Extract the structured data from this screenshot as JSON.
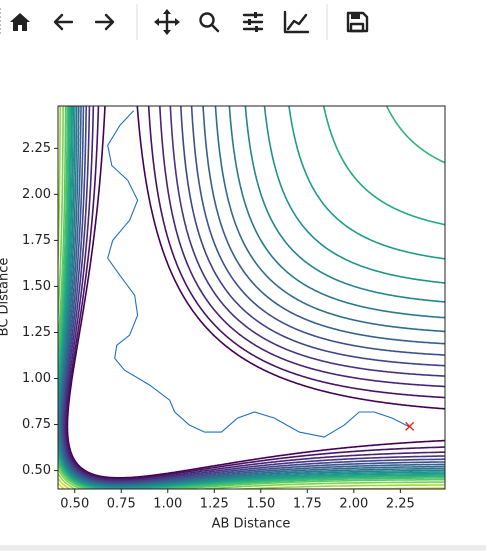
{
  "chart_data": {
    "type": "contour",
    "xlabel": "AB Distance",
    "ylabel": "BC Distance",
    "xlim": [
      0.41,
      2.49
    ],
    "ylim": [
      0.4,
      2.48
    ],
    "xticks": [
      {
        "value": 0.5,
        "label": "0.50"
      },
      {
        "value": 0.75,
        "label": "0.75"
      },
      {
        "value": 1.0,
        "label": "1.00"
      },
      {
        "value": 1.25,
        "label": "1.25"
      },
      {
        "value": 1.5,
        "label": "1.50"
      },
      {
        "value": 1.75,
        "label": "1.75"
      },
      {
        "value": 2.0,
        "label": "2.00"
      },
      {
        "value": 2.25,
        "label": "2.25"
      }
    ],
    "yticks": [
      {
        "value": 0.5,
        "label": "0.50"
      },
      {
        "value": 0.75,
        "label": "0.75"
      },
      {
        "value": 1.0,
        "label": "1.00"
      },
      {
        "value": 1.25,
        "label": "1.25"
      },
      {
        "value": 1.5,
        "label": "1.50"
      },
      {
        "value": 1.75,
        "label": "1.75"
      },
      {
        "value": 2.0,
        "label": "2.00"
      },
      {
        "value": 2.25,
        "label": "2.25"
      }
    ],
    "contours": [
      {
        "level": 1.02,
        "color": "#440154"
      },
      {
        "level": 1.08,
        "color": "#471365"
      },
      {
        "level": 1.15,
        "color": "#482475"
      },
      {
        "level": 1.22,
        "color": "#463480"
      },
      {
        "level": 1.29,
        "color": "#414487"
      },
      {
        "level": 1.36,
        "color": "#3b528b"
      },
      {
        "level": 1.43,
        "color": "#355f8d"
      },
      {
        "level": 1.5,
        "color": "#2f6c8e"
      },
      {
        "level": 1.57,
        "color": "#2a788e"
      },
      {
        "level": 1.64,
        "color": "#25848e"
      },
      {
        "level": 1.71,
        "color": "#21918c"
      },
      {
        "level": 1.78,
        "color": "#1e9c89"
      },
      {
        "level": 1.85,
        "color": "#22a884"
      },
      {
        "level": 1.92,
        "color": "#2fb47c"
      },
      {
        "level": 2.0,
        "color": "#44bf70"
      },
      {
        "level": 2.1,
        "color": "#5ec962"
      },
      {
        "level": 2.25,
        "color": "#7ad151"
      },
      {
        "level": 2.45,
        "color": "#9bd93c"
      },
      {
        "level": 2.7,
        "color": "#bddf26"
      },
      {
        "level": 3.0,
        "color": "#dfe318"
      },
      {
        "level": 3.4,
        "color": "#fde725"
      }
    ],
    "trajectory": {
      "color": "#1f6fc4",
      "x": [
        0.817,
        0.742,
        0.677,
        0.699,
        0.785,
        0.838,
        0.795,
        0.704,
        0.677,
        0.742,
        0.822,
        0.838,
        0.795,
        0.726,
        0.715,
        0.768,
        0.903,
        1.01,
        1.037,
        1.117,
        1.198,
        1.289,
        1.375,
        1.466,
        1.573,
        1.707,
        1.841,
        1.949,
        2.029,
        2.11,
        2.206,
        2.302
      ],
      "y": [
        2.455,
        2.374,
        2.266,
        2.157,
        2.076,
        1.968,
        1.859,
        1.75,
        1.653,
        1.561,
        1.452,
        1.344,
        1.235,
        1.181,
        1.11,
        1.045,
        0.964,
        0.883,
        0.818,
        0.747,
        0.709,
        0.709,
        0.785,
        0.818,
        0.785,
        0.709,
        0.682,
        0.747,
        0.818,
        0.818,
        0.785,
        0.736
      ]
    },
    "marker": {
      "x": 2.3,
      "y": 0.74,
      "color": "#e8201c"
    }
  }
}
